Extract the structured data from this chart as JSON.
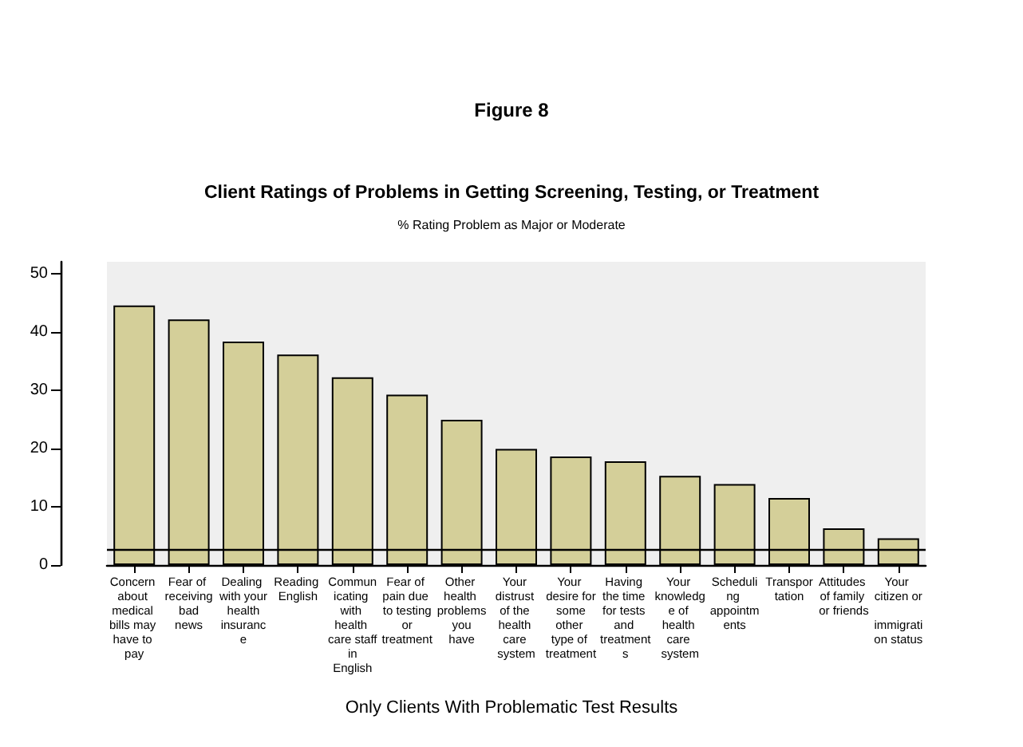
{
  "chart_data": {
    "type": "bar",
    "title": "Figure 8",
    "subtitle": "Client Ratings of Problems in Getting Screening, Testing, or Treatment",
    "ylabel": "% Rating Problem as Major or Moderate",
    "xlabel": "Only Clients With Problematic Test Results",
    "categories": [
      "Concern about medical bills may have to pay",
      "Fear of receiving bad news",
      "Dealing with your health insurance",
      "Reading English",
      "Communicating with health care staff in English",
      "Fear of pain due to testing or treatment",
      "Other health problems you have",
      "Your distrust of the health care system",
      "Your desire for some other type of treatment",
      "Having the time for tests and treatments",
      "Your knowledge of health care system",
      "Scheduling appointments",
      "Transportation",
      "Attitudes of family or friends",
      "Your citizen or immigration status"
    ],
    "values": [
      44.5,
      42.1,
      38.3,
      36.1,
      32.2,
      29.2,
      24.9,
      19.9,
      18.6,
      17.8,
      15.3,
      13.9,
      11.5,
      6.3,
      4.6
    ],
    "color": "#d4cf99",
    "ylim": [
      0,
      52
    ],
    "yticks": [
      0,
      10,
      20,
      30,
      40,
      50
    ],
    "grid": false,
    "ref_lines": [
      {
        "axis": "y",
        "value": 2.7,
        "color": "#000000"
      }
    ]
  }
}
